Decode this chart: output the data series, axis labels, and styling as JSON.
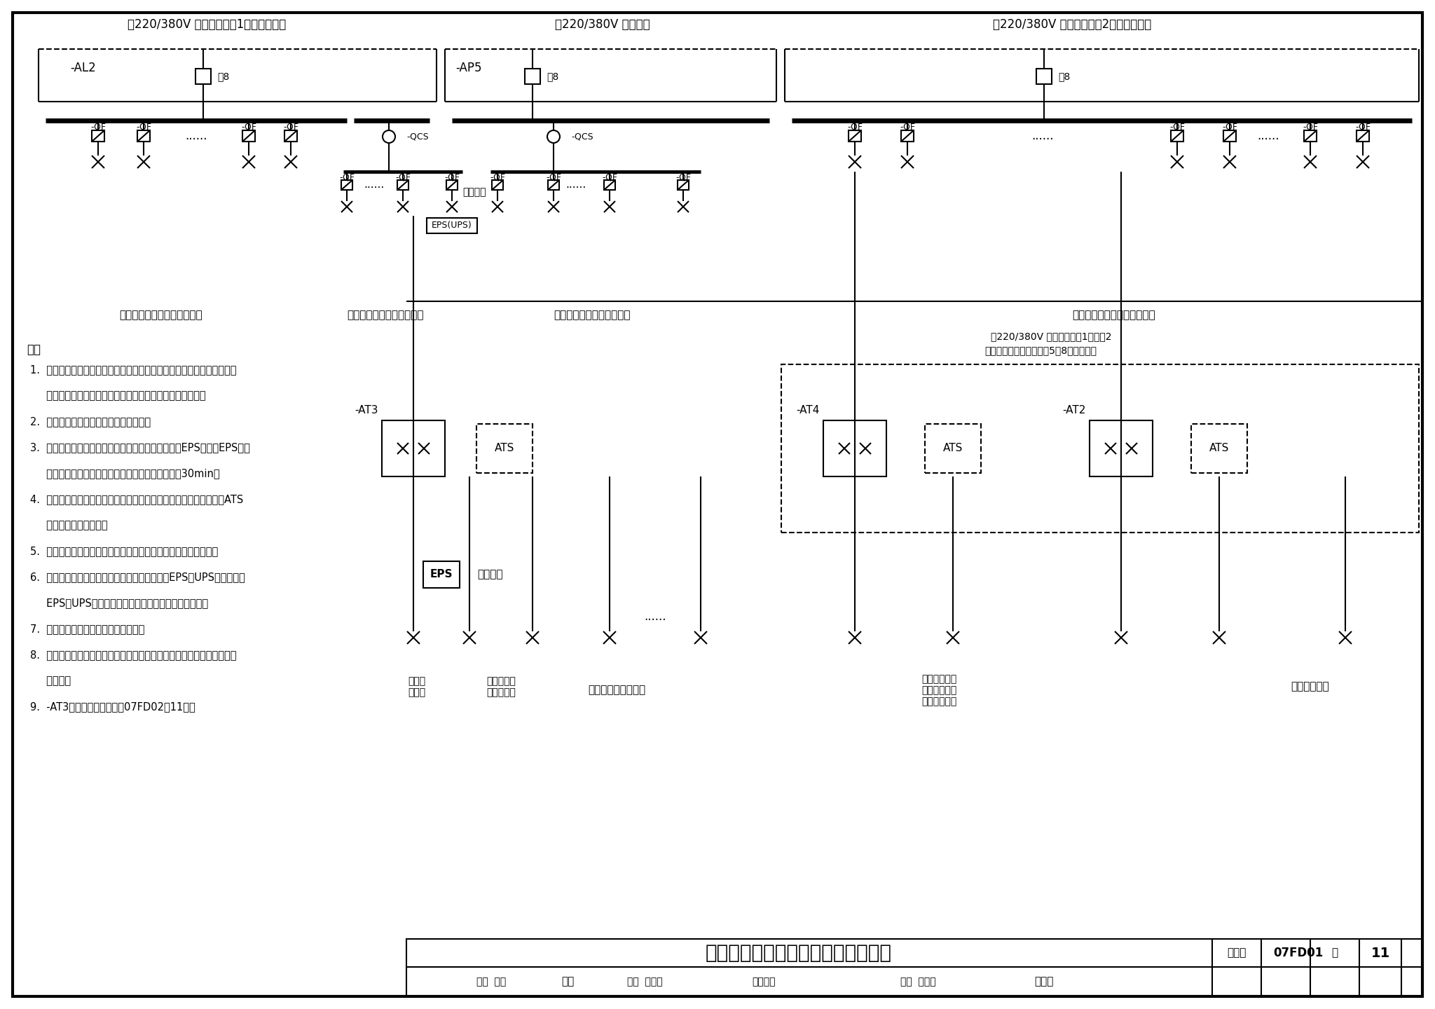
{
  "title": "一个防护单元供电系统示意图（三）",
  "atlas_no": "07FD01",
  "page": "11",
  "bg_color": "#ffffff",
  "source1_label": "～220/380V 电力系统电源1（照明电源）",
  "source2_label": "～220/380V 区域电源",
  "source3_label": "～220/380V 电力系统电源2（动力电源）",
  "AL2_label": "-AL2",
  "AP5_label": "-AP5",
  "note8": "注8",
  "QF_label": "-QF",
  "QCS_label": "-QCS",
  "wartime_label": "战时安装",
  "EPS_UPS_label": "EPS(UPS)",
  "EPS_label": "EPS",
  "ATS_label": "ATS",
  "pinshi_label": "平时用、",
  "right_note1": "～220/380V 电力系统电源1、电源2",
  "right_note2": "消防专用供电回路（见第5～8页索引表）",
  "bottom_labels": [
    "战时三级负荷、平时照明负荷",
    "战时二级负荷（照明负荷）",
    "战时二级负荷（动力负荷）",
    "战时三级负荷、平时动力负荷"
  ],
  "lower_labels": [
    "战时一\n级负荷",
    "战时及平时\n疏散标志灯",
    "战时及平时应急照明",
    "战时二级负荷\n平时、消防均\n用的动力负荷",
    "消防用电设备"
  ],
  "AT_labels": [
    "-AT3",
    "-AT4",
    "-AT2"
  ],
  "notes_header": "注：",
  "notes": [
    "1.  平时负荷由地面建筑室内低压配电室两路电力系统电源供电，照明、动",
    "     力可分别计量，计量表装设位置以当地供电部门要求为准。",
    "2.  消防用电设备接入两路专用供电回路。",
    "3.  根据当地消防部门的要求，平时火灾疏散标志灯由EPS供电，EPS可集",
    "     中设置，也可随灯具设置，其连续供电时间不小于30min。",
    "4.  消防用电设备及应急照明的供配电，应满足相关消防规范的要求，ATS",
    "     选型由工程设计确定。",
    "5.  消防专用供电回路数可根据工程的实际情况，由设计人员确定。",
    "6.  战时电源由区域电源供电，战时一级负荷增加EPS或UPS备用。战时",
    "     EPS（UPS）装置可临战时安装，平时预留安装位置。",
    "7.  战时应急照明宜利用平时应急照明。",
    "8.  平时电力系统电源、战时区域电源进线开关器件由设计人员依据供电系",
    "     统确定。",
    "9.  -AT3柜（箱）布置图参见07FD02第11页。"
  ],
  "review_text": "审核  孙兰",
  "check_text": "校对  李立晓",
  "major_text": "专业负责",
  "design_text": "设计  徐学民"
}
